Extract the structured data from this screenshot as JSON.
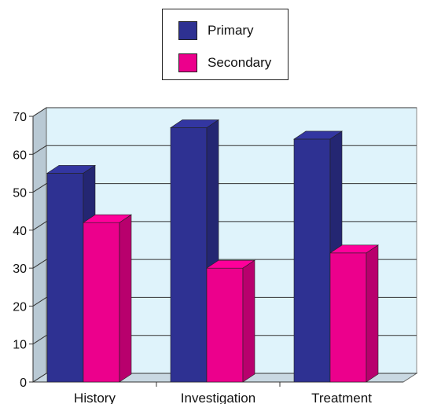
{
  "chart_data": {
    "type": "bar",
    "categories": [
      "History",
      "Investigation",
      "Treatment"
    ],
    "series": [
      {
        "name": "Primary",
        "values": [
          55,
          67,
          64
        ],
        "color": "#2e3192"
      },
      {
        "name": "Secondary",
        "values": [
          42,
          30,
          34
        ],
        "color": "#ec008c"
      }
    ],
    "ylim": [
      0,
      70
    ],
    "yticks": [
      "0",
      "10",
      "20",
      "30",
      "40",
      "50",
      "60",
      "70"
    ],
    "grid": true,
    "legend_position": "top",
    "three_d": true,
    "colors": {
      "wall": "#dff3fb",
      "floor": "#c9d8e2",
      "grid": "#333333"
    }
  }
}
